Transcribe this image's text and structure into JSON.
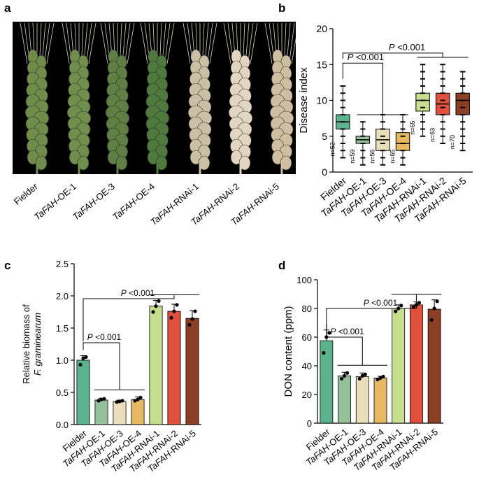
{
  "panel_letters": {
    "a": "a",
    "b": "b",
    "c": "c",
    "d": "d"
  },
  "photo": {
    "description_labels": [
      "Fielder",
      "TaFAH-OE-1",
      "TaFAH-OE-3",
      "TaFAH-OE-4",
      "TaFAH-RNAi-1",
      "TaFAH-RNAi-2",
      "TaFAH-RNAi-5"
    ],
    "spike_colors": [
      "#6f8c4a",
      "#708f4c",
      "#5f7f45",
      "#4f7a3e",
      "#c9c0a6",
      "#e2d6c2",
      "#cdbfa0"
    ]
  },
  "colors": {
    "Fielder": "#5bb38d",
    "OE": [
      "#94c09a",
      "#ebdfbb",
      "#e6b860"
    ],
    "RNAi": [
      "#c6df8d",
      "#e0503a",
      "#8c3f24"
    ]
  },
  "chart_data": [
    {
      "panel": "b",
      "type": "box",
      "categories": [
        "Fielder",
        "TaFAH-OE-1",
        "TaFAH-OE-3",
        "TaFAH-OE-4",
        "TaFAH-RNAi-1",
        "TaFAH-RNAi-2",
        "TaFAH-RNAi-5"
      ],
      "category_italic_prefix": "TaFAH",
      "ylabel": "Disease index",
      "ylim": [
        0,
        20
      ],
      "yticks": [
        0,
        5,
        10,
        15,
        20
      ],
      "boxes": [
        {
          "min": 2,
          "q1": 6,
          "median": 7,
          "q3": 8,
          "max": 12
        },
        {
          "min": 1,
          "q1": 4,
          "median": 4.5,
          "q3": 5,
          "max": 7
        },
        {
          "min": 1,
          "q1": 3,
          "median": 4.5,
          "q3": 6,
          "max": 8
        },
        {
          "min": 1,
          "q1": 3,
          "median": 4,
          "q3": 5.5,
          "max": 8
        },
        {
          "min": 5,
          "q1": 8.5,
          "median": 10,
          "q3": 11,
          "max": 15
        },
        {
          "min": 4,
          "q1": 8,
          "median": 9.5,
          "q3": 11,
          "max": 15
        },
        {
          "min": 3,
          "q1": 8,
          "median": 10,
          "q3": 11,
          "max": 14
        }
      ],
      "n_labels": [
        "n=52",
        "n=59",
        "n=56",
        "n=65",
        "n=65",
        "n=63",
        "n=70"
      ],
      "annotations": [
        {
          "text": "P <0.001",
          "from": 0,
          "to_group": [
            1,
            3
          ]
        },
        {
          "text": "P <0.001",
          "from": 0,
          "to_group": [
            4,
            6
          ]
        }
      ]
    },
    {
      "panel": "c",
      "type": "bar",
      "categories": [
        "Fielder",
        "TaFAH-OE-1",
        "TaFAH-OE-3",
        "TaFAH-OE-4",
        "TaFAH-RNAi-1",
        "TaFAH-RNAi-2",
        "TaFAH-RNAi-5"
      ],
      "values": [
        1.0,
        0.38,
        0.36,
        0.39,
        1.84,
        1.76,
        1.65
      ],
      "errors": [
        0.07,
        0.03,
        0.02,
        0.04,
        0.09,
        0.11,
        0.12
      ],
      "points": [
        [
          0.93,
          1.03,
          1.05
        ],
        [
          0.37,
          0.39,
          0.4
        ],
        [
          0.35,
          0.36,
          0.37
        ],
        [
          0.37,
          0.39,
          0.42
        ],
        [
          1.75,
          1.84,
          1.92
        ],
        [
          1.66,
          1.76,
          1.86
        ],
        [
          1.55,
          1.64,
          1.76
        ]
      ],
      "ylabel_lines": [
        "Relative biomass of",
        "F. graminearum"
      ],
      "ylim": [
        0,
        2.5
      ],
      "yticks": [
        "0.0",
        "0.5",
        "1.0",
        "1.5",
        "2.0",
        "2.5"
      ],
      "annotations": [
        {
          "text": "P <0.001",
          "from": 0,
          "to_group": [
            1,
            3
          ]
        },
        {
          "text": "P <0.001",
          "from": 0,
          "to_group": [
            4,
            6
          ]
        }
      ]
    },
    {
      "panel": "d",
      "type": "bar",
      "categories": [
        "Fielder",
        "TaFAH-OE-1",
        "TaFAH-OE-3",
        "TaFAH-OE-4",
        "TaFAH-RNAi-1",
        "TaFAH-RNAi-2",
        "TaFAH-RNAi-5"
      ],
      "values": [
        57.5,
        33,
        32.5,
        31.5,
        80,
        82.5,
        79.5
      ],
      "errors": [
        7.5,
        2.5,
        2.5,
        1.2,
        2.5,
        2,
        6.5
      ],
      "points": [
        [
          49,
          60,
          63
        ],
        [
          31,
          33,
          35
        ],
        [
          31,
          33,
          34
        ],
        [
          30.5,
          31.5,
          32.5
        ],
        [
          78,
          80,
          82
        ],
        [
          81,
          82.5,
          84
        ],
        [
          72,
          80,
          85
        ]
      ],
      "ylabel": "DON content (ppm)",
      "ylim": [
        0,
        100
      ],
      "yticks": [
        "0",
        "20",
        "40",
        "60",
        "80",
        "100"
      ],
      "annotations": [
        {
          "text": "P <0.001",
          "from": 0,
          "to_group": [
            1,
            3
          ]
        },
        {
          "text": "P <0.001",
          "from": 0,
          "to_group": [
            4,
            6
          ]
        }
      ]
    }
  ]
}
